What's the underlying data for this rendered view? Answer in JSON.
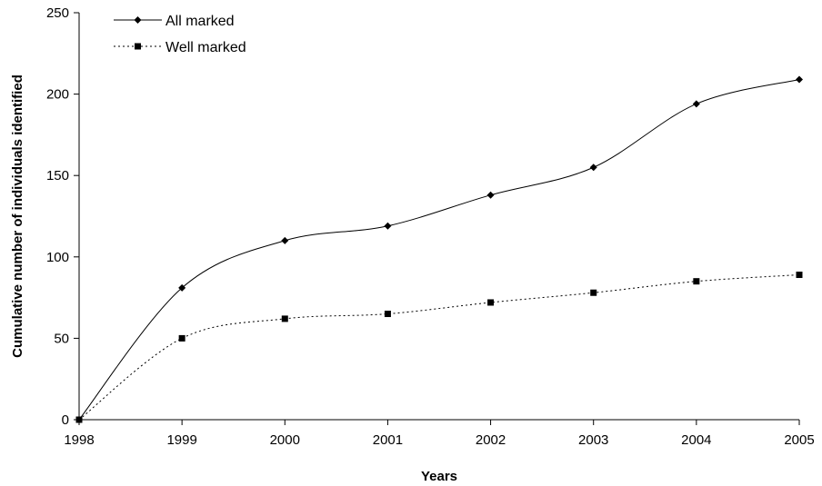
{
  "chart_data": {
    "type": "line",
    "title": "",
    "xlabel": "Years",
    "ylabel": "Cumulative number of individuals identified",
    "x": [
      "1998",
      "1999",
      "2000",
      "2001",
      "2002",
      "2003",
      "2004",
      "2005"
    ],
    "ylim": [
      0,
      250
    ],
    "yticks": [
      0,
      50,
      100,
      150,
      200,
      250
    ],
    "grid": false,
    "legend_position": "top-left",
    "series": [
      {
        "name": "All marked",
        "values": [
          0,
          81,
          110,
          119,
          138,
          155,
          194,
          209
        ],
        "marker": "diamond",
        "line_style": "solid",
        "color": "#000000"
      },
      {
        "name": "Well marked",
        "values": [
          0,
          50,
          62,
          65,
          72,
          78,
          85,
          89
        ],
        "marker": "square",
        "line_style": "dotted",
        "color": "#000000"
      }
    ]
  }
}
